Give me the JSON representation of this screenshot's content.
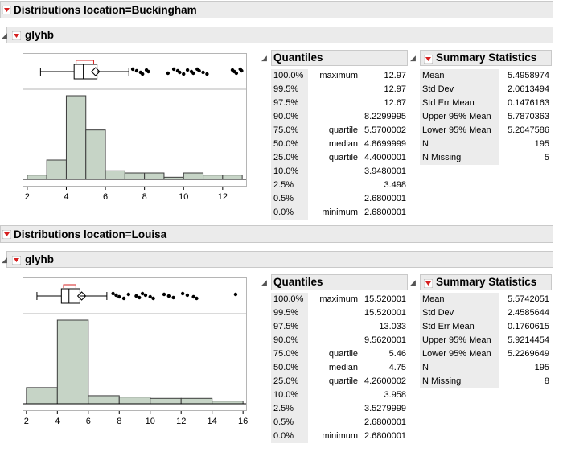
{
  "sections": [
    {
      "header": "Distributions location=Buckingham",
      "variable": "glyhb",
      "quantiles_title": "Quantiles",
      "summary_title": "Summary Statistics",
      "quantiles": [
        {
          "pct": "100.0%",
          "label": "maximum",
          "value": "12.97"
        },
        {
          "pct": "99.5%",
          "label": "",
          "value": "12.97"
        },
        {
          "pct": "97.5%",
          "label": "",
          "value": "12.67"
        },
        {
          "pct": "90.0%",
          "label": "",
          "value": "8.2299995"
        },
        {
          "pct": "75.0%",
          "label": "quartile",
          "value": "5.5700002"
        },
        {
          "pct": "50.0%",
          "label": "median",
          "value": "4.8699999"
        },
        {
          "pct": "25.0%",
          "label": "quartile",
          "value": "4.4000001"
        },
        {
          "pct": "10.0%",
          "label": "",
          "value": "3.9480001"
        },
        {
          "pct": "2.5%",
          "label": "",
          "value": "3.498"
        },
        {
          "pct": "0.5%",
          "label": "",
          "value": "2.6800001"
        },
        {
          "pct": "0.0%",
          "label": "minimum",
          "value": "2.6800001"
        }
      ],
      "summary": [
        {
          "label": "Mean",
          "value": "5.4958974"
        },
        {
          "label": "Std Dev",
          "value": "2.0613494"
        },
        {
          "label": "Std Err Mean",
          "value": "0.1476163"
        },
        {
          "label": "Upper 95% Mean",
          "value": "5.7870363"
        },
        {
          "label": "Lower 95% Mean",
          "value": "5.2047586"
        },
        {
          "label": "N",
          "value": "195"
        },
        {
          "label": "N Missing",
          "value": "5"
        }
      ]
    },
    {
      "header": "Distributions location=Louisa",
      "variable": "glyhb",
      "quantiles_title": "Quantiles",
      "summary_title": "Summary Statistics",
      "quantiles": [
        {
          "pct": "100.0%",
          "label": "maximum",
          "value": "15.520001"
        },
        {
          "pct": "99.5%",
          "label": "",
          "value": "15.520001"
        },
        {
          "pct": "97.5%",
          "label": "",
          "value": "13.033"
        },
        {
          "pct": "90.0%",
          "label": "",
          "value": "9.5620001"
        },
        {
          "pct": "75.0%",
          "label": "quartile",
          "value": "5.46"
        },
        {
          "pct": "50.0%",
          "label": "median",
          "value": "4.75"
        },
        {
          "pct": "25.0%",
          "label": "quartile",
          "value": "4.2600002"
        },
        {
          "pct": "10.0%",
          "label": "",
          "value": "3.958"
        },
        {
          "pct": "2.5%",
          "label": "",
          "value": "3.5279999"
        },
        {
          "pct": "0.5%",
          "label": "",
          "value": "2.6800001"
        },
        {
          "pct": "0.0%",
          "label": "minimum",
          "value": "2.6800001"
        }
      ],
      "summary": [
        {
          "label": "Mean",
          "value": "5.5742051"
        },
        {
          "label": "Std Dev",
          "value": "2.4585644"
        },
        {
          "label": "Std Err Mean",
          "value": "0.1760615"
        },
        {
          "label": "Upper 95% Mean",
          "value": "5.9214454"
        },
        {
          "label": "Lower 95% Mean",
          "value": "5.2269649"
        },
        {
          "label": "N",
          "value": "195"
        },
        {
          "label": "N Missing",
          "value": "8"
        }
      ]
    }
  ],
  "colors": {
    "bar_fill": "#c6d4c6",
    "bar_stroke": "#3c3c3c",
    "menu_red": "#d62020",
    "header_bg": "#ebebeb"
  },
  "chart_data": [
    {
      "type": "bar",
      "title": "glyhb",
      "bin_edges": [
        2,
        3,
        4,
        5,
        6,
        7,
        8,
        9,
        10,
        11,
        12,
        13
      ],
      "values": [
        2,
        9,
        39,
        23,
        4,
        3,
        3,
        1,
        3,
        2,
        2
      ],
      "xlim": [
        1.8,
        13.2
      ],
      "xticks": [
        2,
        4,
        6,
        8,
        10,
        12
      ],
      "box": {
        "min": 2.68,
        "q1": 4.4,
        "median": 4.87,
        "q3": 5.57,
        "mean": 5.4958974,
        "upper_whisker": 7.2,
        "ci_low": 4.5,
        "ci_high": 5.4,
        "outliers": [
          7.4,
          7.6,
          7.8,
          7.9,
          8.1,
          8.2,
          9.2,
          9.5,
          9.7,
          9.8,
          10.0,
          10.2,
          10.4,
          10.5,
          10.7,
          10.8,
          11.0,
          11.2,
          12.5,
          12.6,
          12.7,
          12.9,
          12.97
        ]
      }
    },
    {
      "type": "bar",
      "title": "glyhb",
      "bin_edges": [
        2,
        4,
        6,
        8,
        10,
        12,
        14,
        16
      ],
      "values": [
        12,
        62,
        6,
        5,
        4,
        4,
        2
      ],
      "xlim": [
        1.8,
        16.2
      ],
      "xticks": [
        2,
        4,
        6,
        8,
        10,
        12,
        14,
        16
      ],
      "box": {
        "min": 2.68,
        "q1": 4.26,
        "median": 4.75,
        "q3": 5.46,
        "mean": 5.5742051,
        "upper_whisker": 7.2,
        "ci_low": 4.4,
        "ci_high": 5.2,
        "outliers": [
          7.6,
          7.8,
          8.0,
          8.3,
          8.6,
          9.1,
          9.3,
          9.5,
          9.7,
          10.0,
          10.2,
          10.9,
          11.2,
          11.5,
          12.1,
          12.4,
          12.8,
          13.0,
          15.52
        ]
      }
    }
  ]
}
